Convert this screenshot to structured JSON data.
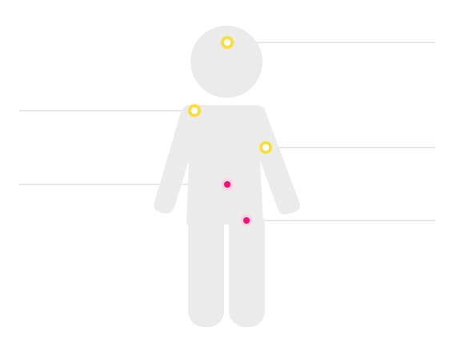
{
  "colors": {
    "background": "#ffffff",
    "figure": "#ebebeb",
    "leader_line": "#e0e0e0",
    "marker_yellow": "#f7dc3e",
    "marker_yellow_center": "#ffffff",
    "marker_pink": "#ee1179",
    "marker_pink_glow": "#fac6dd"
  },
  "figure": {
    "icon": "child-body-silhouette"
  },
  "markers": [
    {
      "id": "head",
      "style": "ring-yellow",
      "label_side": "right"
    },
    {
      "id": "right-shoulder",
      "style": "ring-yellow",
      "label_side": "left"
    },
    {
      "id": "left-upper-arm",
      "style": "ring-yellow",
      "label_side": "right"
    },
    {
      "id": "torso",
      "style": "dot-pink",
      "label_side": "left"
    },
    {
      "id": "left-hip",
      "style": "dot-pink",
      "label_side": "right"
    }
  ]
}
